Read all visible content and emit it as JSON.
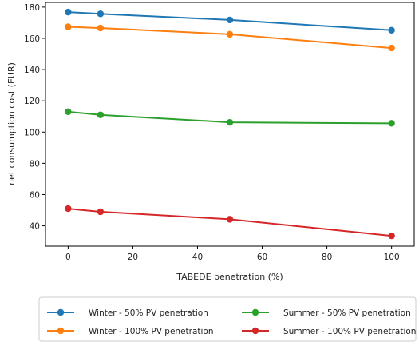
{
  "chart_data": {
    "type": "line",
    "xlabel": "TABEDE penetration (%)",
    "ylabel": "net consumption cost (EUR)",
    "xlim": [
      -7,
      107
    ],
    "ylim": [
      27,
      183
    ],
    "xticks": [
      "0",
      "20",
      "40",
      "60",
      "80",
      "100"
    ],
    "yticks": [
      "40",
      "60",
      "80",
      "100",
      "120",
      "140",
      "160",
      "180"
    ],
    "grid": false,
    "legend_position": "bottom-outside",
    "x": [
      0,
      10,
      50,
      100
    ],
    "series": [
      {
        "name": "Winter - 50% PV penetration",
        "color": "#1f77b4",
        "values": [
          176.8,
          175.7,
          171.8,
          165.2
        ]
      },
      {
        "name": "Winter - 100% PV penetration",
        "color": "#ff7f0e",
        "values": [
          167.4,
          166.6,
          162.6,
          153.8
        ]
      },
      {
        "name": "Summer - 50% PV penetration",
        "color": "#2ca02c",
        "values": [
          113.0,
          111.0,
          106.2,
          105.6
        ]
      },
      {
        "name": "Summer - 100% PV penetration",
        "color": "#d62728",
        "values": [
          51.0,
          49.0,
          44.2,
          33.6
        ]
      }
    ]
  }
}
